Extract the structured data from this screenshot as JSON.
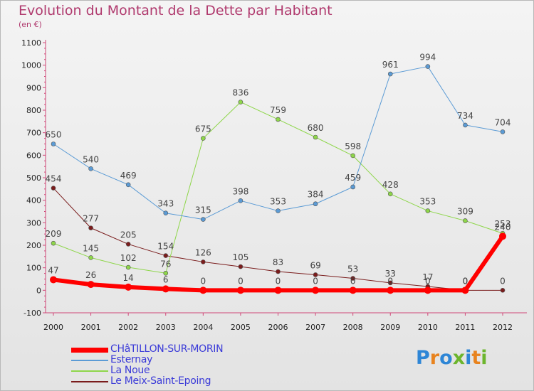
{
  "title": "Evolution du Montant de la Dette par Habitant",
  "subtitle": "(en €)",
  "logo": {
    "text": "Proxiti",
    "colors": [
      "#2e86d6",
      "#e8831e",
      "#2e86d6",
      "#6cb52d",
      "#2e86d6",
      "#e8831e",
      "#6cb52d"
    ]
  },
  "chart_data": {
    "type": "line",
    "title": "Evolution du Montant de la Dette par Habitant",
    "ylabel": "(en €)",
    "xlabel": "",
    "ylim": [
      -100,
      1100
    ],
    "yticks": [
      -100,
      0,
      100,
      200,
      300,
      400,
      500,
      600,
      700,
      800,
      900,
      1000,
      1100
    ],
    "x": [
      "2000",
      "2001",
      "2002",
      "2003",
      "2004",
      "2005",
      "2006",
      "2007",
      "2008",
      "2009",
      "2010",
      "2011",
      "2012"
    ],
    "grid": false,
    "legend": "bottom-left",
    "series": [
      {
        "name": "Le Meix-Saint-Epoing",
        "color": "#7a1c1c",
        "width": 1,
        "values": [
          454,
          277,
          205,
          154,
          126,
          105,
          83,
          69,
          53,
          33,
          17,
          0,
          0
        ],
        "labels": [
          "454",
          "277",
          "205",
          "154",
          "126",
          "105",
          "83",
          "69",
          "53",
          "33",
          "17",
          "0",
          "0"
        ]
      },
      {
        "name": "La Noue",
        "color": "#8ed64a",
        "width": 1,
        "values": [
          209,
          145,
          102,
          76,
          675,
          836,
          759,
          680,
          598,
          428,
          353,
          309,
          253
        ],
        "labels": [
          "209",
          "145",
          "102",
          "76",
          "675",
          "836",
          "759",
          "680",
          "598",
          "428",
          "353",
          "309",
          "253"
        ]
      },
      {
        "name": "Esternay",
        "color": "#5b9bd5",
        "width": 1,
        "values": [
          650,
          540,
          469,
          343,
          315,
          398,
          353,
          384,
          459,
          961,
          994,
          734,
          704
        ],
        "labels": [
          "650",
          "540",
          "469",
          "343",
          "315",
          "398",
          "353",
          "384",
          "459",
          "961",
          "994",
          "734",
          "704"
        ]
      },
      {
        "name": "CHâTILLON-SUR-MORIN",
        "color": "#ff0000",
        "width": 6,
        "values": [
          47,
          26,
          14,
          6,
          0,
          0,
          0,
          0,
          0,
          0,
          0,
          0,
          240
        ],
        "labels": [
          "47",
          "26",
          "14",
          "6",
          "0",
          "0",
          "0",
          "0",
          "0",
          "0",
          "0",
          "0",
          "240"
        ]
      }
    ]
  }
}
